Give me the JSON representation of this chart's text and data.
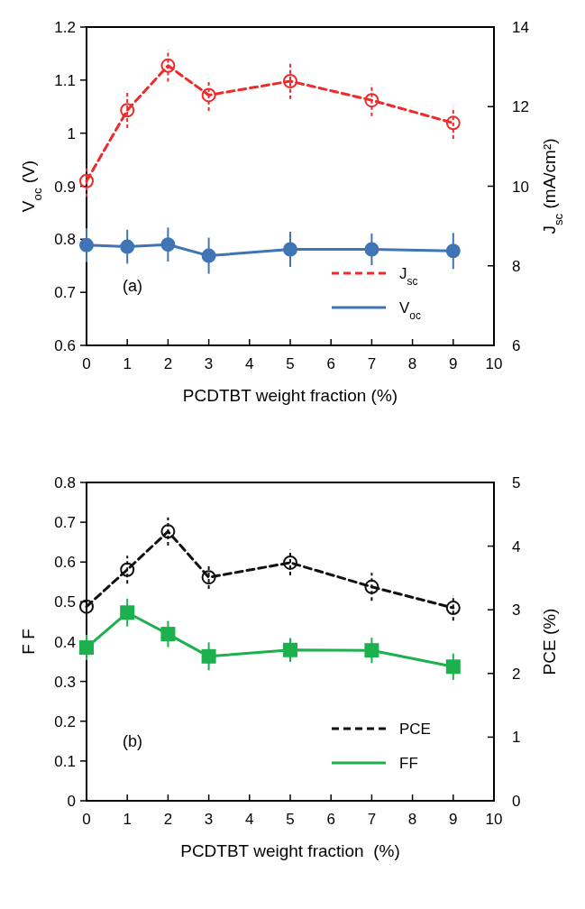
{
  "chart_data": [
    {
      "type": "line",
      "x": [
        0,
        1,
        2,
        3,
        5,
        7,
        9
      ],
      "xlabel": "PCDTBT weight fraction (%)",
      "ylabel": "V$_{oc}$ (V)",
      "y2label": "J$_{sc}$ (mA/cm²)",
      "xlim": [
        0,
        10
      ],
      "xticks": [
        0,
        1,
        2,
        3,
        4,
        5,
        6,
        7,
        8,
        9,
        10
      ],
      "ylim": [
        0.6,
        1.2
      ],
      "yticks": [
        {
          "value": 0.6,
          "label": "0.6"
        },
        {
          "value": 0.7,
          "label": "0.7"
        },
        {
          "value": 0.8,
          "label": "0.8"
        },
        {
          "value": 0.9,
          "label": "0.9"
        },
        1,
        {
          "value": 1.1,
          "label": "1.1"
        },
        {
          "value": 1.2,
          "label": "1.2"
        }
      ],
      "y2lim": [
        6,
        14
      ],
      "y2ticks": [
        6,
        8,
        10,
        12,
        14
      ],
      "grid": false,
      "legend": "bottom right",
      "annotations": [
        "(a)"
      ],
      "series": [
        {
          "name": "J$_{sc}$",
          "color": "#ee2a2a",
          "axis": "y2",
          "line_style": "dashed",
          "marker": "circle",
          "values": [
            10.13,
            11.91,
            13.03,
            12.29,
            12.64,
            12.16,
            11.59
          ],
          "errors": [
            0.4,
            0.45,
            0.4,
            0.4,
            0.45,
            0.4,
            0.4
          ]
        },
        {
          "name": "V$_{oc}$",
          "color": "#3f74b5",
          "line_style": "solid",
          "marker": "circle",
          "values": [
            0.789,
            0.786,
            0.79,
            0.769,
            0.781,
            0.781,
            0.778
          ],
          "errors": [
            0.032,
            0.032,
            0.032,
            0.034,
            0.033,
            0.03,
            0.034
          ]
        }
      ]
    },
    {
      "type": "line",
      "x": [
        0,
        1,
        2,
        3,
        5,
        7,
        9
      ],
      "xlabel": "PCDTBT weight fraction  (%)",
      "ylabel": "F F",
      "y2label": "PCE (%)",
      "xlim": [
        0,
        10
      ],
      "xticks": [
        0,
        1,
        2,
        3,
        4,
        5,
        6,
        7,
        8,
        9,
        10
      ],
      "ylim": [
        0,
        0.8
      ],
      "yticks": [
        0,
        {
          "value": 0.1,
          "label": "0.1"
        },
        {
          "value": 0.2,
          "label": "0.2"
        },
        {
          "value": 0.3,
          "label": "0.3"
        },
        {
          "value": 0.4,
          "label": "0.4"
        },
        {
          "value": 0.5,
          "label": "0.5"
        },
        {
          "value": 0.6,
          "label": "0.6"
        },
        {
          "value": 0.7,
          "label": "0.7"
        },
        {
          "value": 0.8,
          "label": "0.8"
        }
      ],
      "y2lim": [
        0,
        5
      ],
      "y2ticks": [
        0,
        1,
        2,
        3,
        4,
        5
      ],
      "grid": false,
      "legend": "bottom right",
      "annotations": [
        "(b)"
      ],
      "series": [
        {
          "name": "PCE",
          "color": "#111111",
          "axis": "y2",
          "line_style": "dashed",
          "marker": "circle",
          "values": [
            3.05,
            3.63,
            4.23,
            3.51,
            3.74,
            3.36,
            3.03
          ],
          "errors": [
            0.2,
            0.22,
            0.22,
            0.18,
            0.2,
            0.22,
            0.2
          ]
        },
        {
          "name": "FF",
          "color": "#1db04e",
          "line_style": "solid",
          "marker": "square",
          "values": [
            0.385,
            0.473,
            0.419,
            0.363,
            0.379,
            0.378,
            0.337
          ],
          "errors": [
            0.032,
            0.035,
            0.033,
            0.035,
            0.03,
            0.032,
            0.033
          ]
        }
      ]
    }
  ]
}
